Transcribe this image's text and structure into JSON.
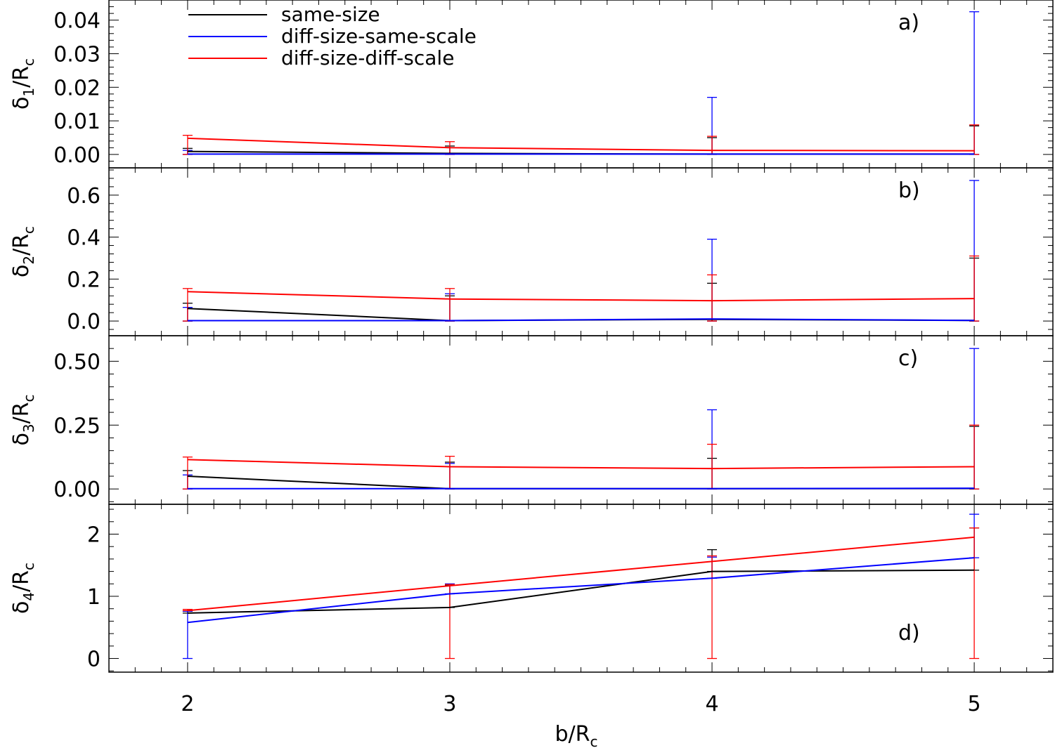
{
  "chart_data": {
    "type": "line",
    "x": [
      2,
      3,
      4,
      5
    ],
    "xlim": [
      1.7,
      5.3
    ],
    "xticks": [
      "2",
      "3",
      "4",
      "5"
    ],
    "xlabel": {
      "main": "b/R",
      "sub": "c"
    },
    "legend": {
      "placement": "top-left",
      "entries": [
        {
          "name": "same-size",
          "color": "#000000"
        },
        {
          "name": "diff-size-same-scale",
          "color": "#0000ff"
        },
        {
          "name": "diff-size-diff-scale",
          "color": "#ff0000"
        }
      ]
    },
    "panels": [
      {
        "label": "a)",
        "ylabel": {
          "main": "δ",
          "index": "1",
          "tail": "/R",
          "sub": "c"
        },
        "ylim": [
          -0.004,
          0.046
        ],
        "yticks": [
          "0.00",
          "0.01",
          "0.02",
          "0.03",
          "0.04"
        ],
        "series": [
          {
            "name": "same-size",
            "color": "#000000",
            "values": [
              0.0009,
              0.0003,
              0.0001,
              0.0001
            ],
            "err_upper": [
              0.0018,
              0.0025,
              0.005,
              0.0085
            ]
          },
          {
            "name": "diff-size-same-scale",
            "color": "#0000ff",
            "values": [
              0.0001,
              0.0001,
              0.0001,
              0.0001
            ],
            "err_upper": [
              0.0012,
              0.002,
              0.017,
              0.0425
            ]
          },
          {
            "name": "diff-size-diff-scale",
            "color": "#ff0000",
            "values": [
              0.0048,
              0.002,
              0.0012,
              0.0011
            ],
            "err_upper": [
              0.0057,
              0.0038,
              0.0054,
              0.0088
            ]
          }
        ]
      },
      {
        "label": "b)",
        "ylabel": {
          "main": "δ",
          "index": "2",
          "tail": "/R",
          "sub": "c"
        },
        "ylim": [
          -0.07,
          0.73
        ],
        "yticks": [
          "0.0",
          "0.2",
          "0.4",
          "0.6"
        ],
        "series": [
          {
            "name": "same-size",
            "color": "#000000",
            "values": [
              0.06,
              0.002,
              0.008,
              0.003
            ],
            "err_upper": [
              0.085,
              0.12,
              0.18,
              0.3
            ]
          },
          {
            "name": "diff-size-same-scale",
            "color": "#0000ff",
            "values": [
              0.002,
              0.002,
              0.01,
              0.003
            ],
            "err_upper": [
              0.065,
              0.13,
              0.39,
              0.67
            ]
          },
          {
            "name": "diff-size-diff-scale",
            "color": "#ff0000",
            "values": [
              0.14,
              0.105,
              0.097,
              0.107
            ],
            "err_upper": [
              0.155,
              0.155,
              0.22,
              0.31
            ]
          }
        ]
      },
      {
        "label": "c)",
        "ylabel": {
          "main": "δ",
          "index": "3",
          "tail": "/R",
          "sub": "c"
        },
        "ylim": [
          -0.06,
          0.6
        ],
        "yticks": [
          "0.00",
          "0.25",
          "0.50"
        ],
        "series": [
          {
            "name": "same-size",
            "color": "#000000",
            "values": [
              0.05,
              0.001,
              0.001,
              0.002
            ],
            "err_upper": [
              0.072,
              0.105,
              0.12,
              0.245
            ]
          },
          {
            "name": "diff-size-same-scale",
            "color": "#0000ff",
            "values": [
              0.001,
              0.001,
              0.001,
              0.003
            ],
            "err_upper": [
              0.055,
              0.1,
              0.31,
              0.55
            ]
          },
          {
            "name": "diff-size-diff-scale",
            "color": "#ff0000",
            "values": [
              0.115,
              0.087,
              0.08,
              0.087
            ],
            "err_upper": [
              0.125,
              0.128,
              0.175,
              0.25
            ]
          }
        ]
      },
      {
        "label": "d)",
        "ylabel": {
          "main": "δ",
          "index": "4",
          "tail": "/R",
          "sub": "c"
        },
        "ylim": [
          -0.22,
          2.48
        ],
        "yticks": [
          "0",
          "1",
          "2"
        ],
        "series": [
          {
            "name": "same-size",
            "color": "#000000",
            "values": [
              0.73,
              0.82,
              1.4,
              1.42
            ],
            "err_upper": [
              0.76,
              1.18,
              1.75,
              2.1
            ],
            "err_lower": [
              0.73,
              0.82,
              1.4,
              1.42
            ]
          },
          {
            "name": "diff-size-same-scale",
            "color": "#0000ff",
            "values": [
              0.58,
              1.04,
              1.29,
              1.62
            ],
            "err_upper": [
              0.76,
              1.2,
              1.63,
              2.32
            ],
            "err_lower": [
              0.0,
              1.04,
              1.29,
              1.62
            ]
          },
          {
            "name": "diff-size-diff-scale",
            "color": "#ff0000",
            "values": [
              0.77,
              1.17,
              1.56,
              1.95
            ],
            "err_upper": [
              0.79,
              1.19,
              1.65,
              2.1
            ],
            "err_lower": [
              0.77,
              0.0,
              0.0,
              0.0
            ]
          }
        ]
      }
    ]
  }
}
